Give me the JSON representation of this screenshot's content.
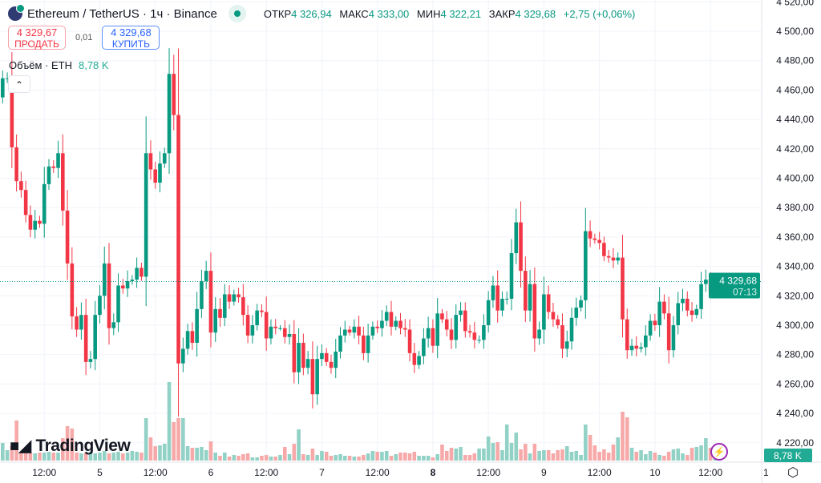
{
  "header": {
    "symbol": "Ethereum / TetherUS · 1ч · Binance",
    "open_label": "ОТКР",
    "open": "4 326,94",
    "high_label": "МАКС",
    "high": "4 333,00",
    "low_label": "МИН",
    "low": "4 322,21",
    "close_label": "ЗАКР",
    "close": "4 329,68",
    "change": "+2,75 (+0,06%)"
  },
  "trade": {
    "sell_price": "4 329,67",
    "sell_label": "ПРОДАТЬ",
    "spread": "0,01",
    "buy_price": "4 329,68",
    "buy_label": "КУПИТЬ"
  },
  "volume": {
    "label": "Объём · ETH",
    "value": "8,78 K"
  },
  "collapse_icon": "chevron-up-icon",
  "logo_text": "TradingView",
  "colors": {
    "up": "#089981",
    "down": "#F23645",
    "up_vol": "#92d2c6",
    "down_vol": "#f7a9a9",
    "grid": "#f0f3fa"
  },
  "chart_data": {
    "type": "candlestick",
    "title": "Ethereum / TetherUS · 1ч · Binance",
    "ylim": [
      4220,
      4520
    ],
    "y_ticks": [
      "4 520,00",
      "4 500,00",
      "4 480,00",
      "4 460,00",
      "4 440,00",
      "4 420,00",
      "4 400,00",
      "4 380,00",
      "4 360,00",
      "4 340,00",
      "4 320,00",
      "4 300,00",
      "4 280,00",
      "4 260,00",
      "4 240,00",
      "4 220,00"
    ],
    "y_tick_values": [
      4520,
      4500,
      4480,
      4460,
      4440,
      4420,
      4400,
      4380,
      4360,
      4340,
      4320,
      4300,
      4280,
      4260,
      4240,
      4220
    ],
    "x_ticks": [
      {
        "label": "12:00",
        "index": 9
      },
      {
        "label": "5",
        "index": 21,
        "bold": false
      },
      {
        "label": "12:00",
        "index": 33
      },
      {
        "label": "6",
        "index": 45
      },
      {
        "label": "12:00",
        "index": 57
      },
      {
        "label": "7",
        "index": 69
      },
      {
        "label": "12:00",
        "index": 81
      },
      {
        "label": "8",
        "index": 93,
        "bold": true
      },
      {
        "label": "12:00",
        "index": 105
      },
      {
        "label": "9",
        "index": 117
      },
      {
        "label": "12:00",
        "index": 129
      },
      {
        "label": "10",
        "index": 141
      },
      {
        "label": "12:00",
        "index": 153
      },
      {
        "label": "1",
        "index": 165
      }
    ],
    "first_open": 4455,
    "closes": [
      4468,
      4468,
      4421,
      4398,
      4392,
      4375,
      4365,
      4371,
      4369,
      4396,
      4408,
      4407,
      4417,
      4378,
      4342,
      4306,
      4297,
      4307,
      4275,
      4277,
      4307,
      4320,
      4342,
      4298,
      4302,
      4327,
      4325,
      4330,
      4331,
      4339,
      4333,
      4417,
      4406,
      4397,
      4410,
      4417,
      4471,
      4443,
      4274,
      4284,
      4296,
      4288,
      4311,
      4330,
      4337,
      4295,
      4311,
      4305,
      4321,
      4316,
      4321,
      4319,
      4307,
      4293,
      4300,
      4310,
      4309,
      4291,
      4299,
      4298,
      4298,
      4292,
      4294,
      4268,
      4288,
      4271,
      4277,
      4253,
      4277,
      4281,
      4275,
      4271,
      4282,
      4293,
      4297,
      4295,
      4299,
      4293,
      4281,
      4293,
      4299,
      4298,
      4303,
      4309,
      4299,
      4303,
      4298,
      4297,
      4281,
      4273,
      4279,
      4291,
      4298,
      4286,
      4308,
      4304,
      4297,
      4290,
      4307,
      4310,
      4296,
      4295,
      4290,
      4290,
      4300,
      4317,
      4327,
      4310,
      4318,
      4318,
      4349,
      4370,
      4337,
      4310,
      4328,
      4291,
      4297,
      4321,
      4309,
      4304,
      4300,
      4284,
      4289,
      4305,
      4312,
      4317,
      4364,
      4359,
      4358,
      4356,
      4347,
      4346,
      4344,
      4346,
      4304,
      4283,
      4286,
      4284,
      4285,
      4293,
      4303,
      4300,
      4316,
      4308,
      4283,
      4300,
      4315,
      4318,
      4310,
      4307,
      4311,
      4328,
      4331,
      4323,
      4325,
      4329.68
    ],
    "volumes_k": [
      22,
      13,
      18,
      50,
      10,
      10,
      10,
      9,
      10,
      10,
      11,
      10,
      10,
      28,
      43,
      40,
      10,
      9,
      10,
      11,
      9,
      10,
      12,
      9,
      10,
      11,
      9,
      10,
      12,
      11,
      10,
      53,
      29,
      18,
      19,
      21,
      98,
      48,
      53,
      53,
      18,
      16,
      16,
      17,
      13,
      24,
      10,
      6,
      10,
      5,
      7,
      6,
      8,
      9,
      4,
      4,
      6,
      7,
      5,
      5,
      7,
      17,
      8,
      21,
      39,
      8,
      7,
      15,
      7,
      12,
      11,
      6,
      7,
      8,
      6,
      6,
      5,
      5,
      7,
      9,
      12,
      11,
      11,
      12,
      6,
      8,
      10,
      10,
      9,
      11,
      6,
      6,
      6,
      4,
      8,
      20,
      12,
      16,
      15,
      17,
      7,
      7,
      9,
      15,
      15,
      30,
      22,
      23,
      13,
      45,
      22,
      35,
      14,
      21,
      9,
      21,
      12,
      13,
      13,
      9,
      13,
      14,
      18,
      11,
      12,
      7,
      45,
      32,
      19,
      11,
      14,
      10,
      20,
      29,
      61,
      54,
      16,
      11,
      13,
      8,
      12,
      10,
      7,
      6,
      11,
      14,
      15,
      9,
      7,
      16,
      17,
      19,
      28,
      16,
      8,
      8.78
    ],
    "last_price": "4 329,68",
    "countdown": "07:13",
    "last_volume": "8,78 K"
  }
}
